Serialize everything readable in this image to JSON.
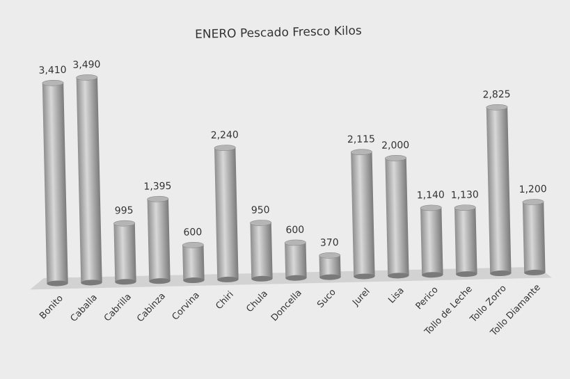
{
  "chart_data": {
    "type": "bar",
    "title": "ENERO Pescado Fresco Kilos",
    "categories": [
      "Bonito",
      "Caballa",
      "Cabrilla",
      "Cabinza",
      "Corvina",
      "Chiri",
      "Chula",
      "Doncella",
      "Suco",
      "Jurel",
      "Lisa",
      "Perico",
      "Tollo de Leche",
      "Tollo Zorro",
      "Tollo Diamante"
    ],
    "values": [
      3410,
      3490,
      995,
      1395,
      600,
      2240,
      950,
      600,
      370,
      2115,
      2000,
      1140,
      1130,
      2825,
      1200
    ],
    "value_labels": [
      "3,410",
      "3,490",
      "995",
      "1,395",
      "600",
      "2,240",
      "950",
      "600",
      "370",
      "2,115",
      "2,000",
      "1,140",
      "1,130",
      "2,825",
      "1,200"
    ],
    "color": "#b5b5b5"
  }
}
